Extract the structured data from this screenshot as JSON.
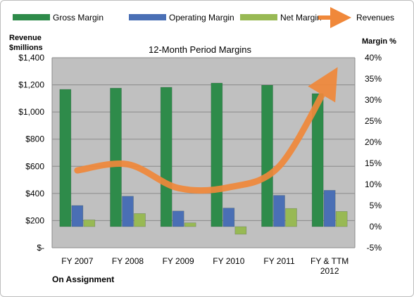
{
  "chart_data": {
    "type": "bar",
    "title": "12-Month Period Margins",
    "left_axis_title_line1": "Revenue",
    "left_axis_title_line2": "$millions",
    "right_axis_title": "Margin %",
    "footer_label": "On Assignment",
    "categories": [
      [
        "FY 2007"
      ],
      [
        "FY 2008"
      ],
      [
        "FY 2009"
      ],
      [
        "FY 2010"
      ],
      [
        "FY 2011"
      ],
      [
        "FY & TTM",
        "2012"
      ]
    ],
    "left_axis": {
      "min": 0,
      "max": 1400,
      "ticks": [
        0,
        200,
        400,
        600,
        800,
        1000,
        1200,
        1400
      ],
      "tick_labels": [
        "$-",
        "$200",
        "$400",
        "$600",
        "$800",
        "$1,000",
        "$1,200",
        "$1,400"
      ]
    },
    "right_axis": {
      "min": -5,
      "max": 40,
      "ticks": [
        -5,
        0,
        5,
        10,
        15,
        20,
        25,
        30,
        35,
        40
      ],
      "tick_labels": [
        "-5%",
        "0%",
        "5%",
        "10%",
        "15%",
        "20%",
        "25%",
        "30%",
        "35%",
        "40%"
      ]
    },
    "series": [
      {
        "name": "Gross Margin",
        "axis": "right",
        "kind": "bar",
        "color": "#2e8b4a",
        "values": [
          32.5,
          32.8,
          33.0,
          34.0,
          33.5,
          31.5
        ]
      },
      {
        "name": "Operating Margin",
        "axis": "right",
        "kind": "bar",
        "color": "#4a6fb5",
        "values": [
          5.0,
          7.2,
          3.7,
          4.4,
          7.4,
          8.6
        ]
      },
      {
        "name": "Net Margin",
        "axis": "right",
        "kind": "bar",
        "color": "#98b954",
        "values": [
          1.6,
          3.1,
          0.9,
          -1.8,
          4.3,
          3.6
        ]
      },
      {
        "name": "Revenues",
        "axis": "left",
        "kind": "line",
        "color": "#f0883a",
        "values": [
          570,
          615,
          440,
          445,
          600,
          1230
        ]
      }
    ],
    "grid": true,
    "legend_position": "top"
  }
}
